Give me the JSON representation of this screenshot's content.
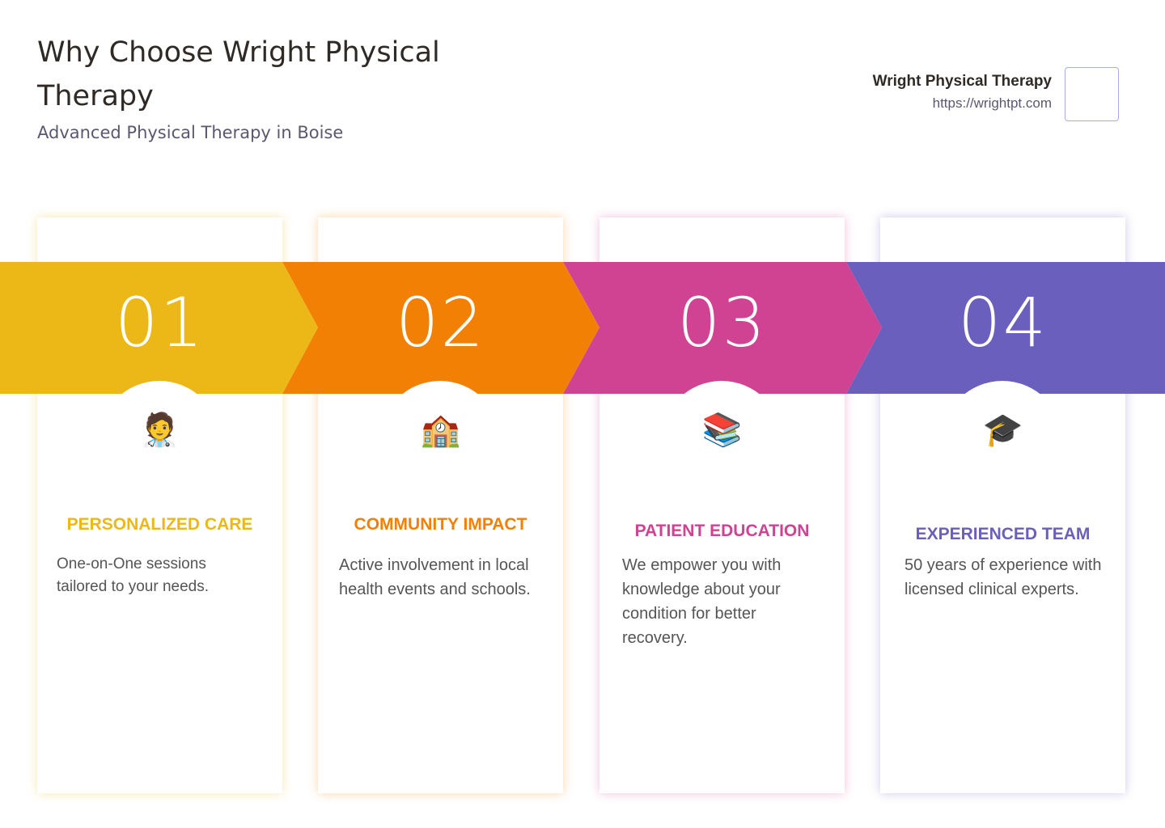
{
  "header": {
    "title": "Why Choose Wright Physical Therapy",
    "subtitle": "Advanced Physical Therapy in Boise",
    "brand_name": "Wright Physical Therapy",
    "brand_url": "https://wrightpt.com"
  },
  "steps": [
    {
      "number": "01",
      "icon": "health-worker",
      "emoji": "🧑‍⚕️",
      "title": "PERSONALIZED CARE",
      "description": "One-on-One sessions tailored to your needs.",
      "color": "#ebb817"
    },
    {
      "number": "02",
      "icon": "school-building",
      "emoji": "🏫",
      "title": "COMMUNITY IMPACT",
      "description": "Active involvement in local health events and schools.",
      "color": "#f28004"
    },
    {
      "number": "03",
      "icon": "books",
      "emoji": "📚",
      "title": "PATIENT EDUCATION",
      "description": "We empower you with knowledge about your condition for better recovery.",
      "color": "#d04292"
    },
    {
      "number": "04",
      "icon": "graduation-cap",
      "emoji": "🎓",
      "title": "EXPERIENCED TEAM",
      "description": "50 years of experience with licensed clinical experts.",
      "color": "#6b5fbd"
    }
  ]
}
